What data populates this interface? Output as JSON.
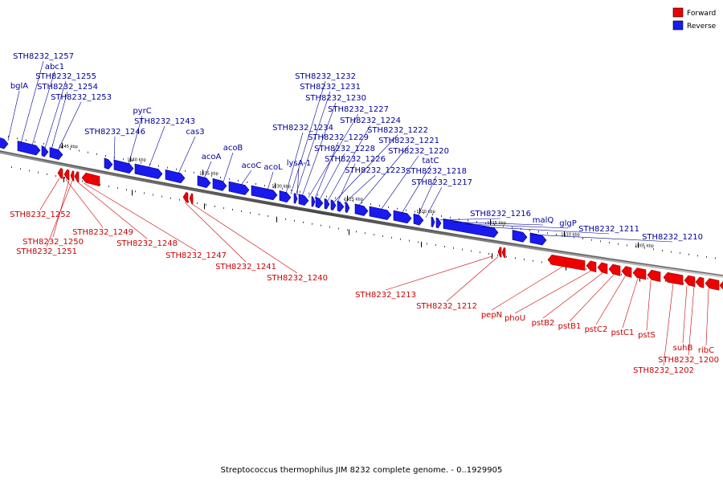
{
  "legend": [
    {
      "name": "Forward",
      "color": "#ee0000"
    },
    {
      "name": "Reverse",
      "color": "#1a1aee"
    }
  ],
  "caption": "Streptococcus thermophilus JIM 8232 complete genome. - 0..1929905",
  "colors": {
    "forward_label": "#cc0000",
    "reverse_label": "#00009a",
    "forward_gene": "#ee0000",
    "reverse_gene": "#1a1aee"
  },
  "scale_labels": [
    "1045 kbp",
    "1040 kbp",
    "1035 kbp",
    "1030 kbp",
    "1025 kbp",
    "1020 kbp",
    "1015 kbp",
    "1010 kbp",
    "1005 kbp"
  ],
  "reverse_labels": [
    "bglA",
    "STH8232_1257",
    "abc1",
    "STH8232_1255",
    "STH8232_1254",
    "STH8232_1253",
    "STH8232_1246",
    "pyrC",
    "STH8232_1243",
    "cas3",
    "acoA",
    "acoB",
    "acoC",
    "acoL",
    "STH8232_1234",
    "STH8232_1232",
    "STH8232_1231",
    "STH8232_1230",
    "STH8232_1227",
    "lysA-1",
    "STH8232_1229",
    "STH8232_1228",
    "STH8232_1224",
    "STH8232_1222",
    "STH8232_1226",
    "STH8232_1223",
    "STH8232_1221",
    "STH8232_1220",
    "tatC",
    "STH8232_1218",
    "STH8232_1217",
    "STH8232_1216",
    "malQ",
    "glgP",
    "STH8232_1211",
    "STH8232_1210"
  ],
  "forward_labels": [
    "STH8232_1252",
    "STH8232_1249",
    "STH8232_1250",
    "STH8232_1251",
    "STH8232_1248",
    "STH8232_1247",
    "STH8232_1241",
    "STH8232_1240",
    "STH8232_1213",
    "STH8232_1212",
    "pepN",
    "phoU",
    "pstB2",
    "pstB1",
    "pstC2",
    "pstC1",
    "pstS",
    "suhB",
    "ribC",
    "STH8232_1200",
    "STH8232_1202"
  ]
}
